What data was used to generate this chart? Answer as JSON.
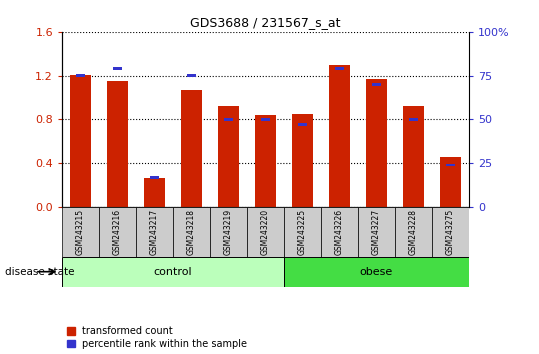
{
  "title": "GDS3688 / 231567_s_at",
  "samples": [
    "GSM243215",
    "GSM243216",
    "GSM243217",
    "GSM243218",
    "GSM243219",
    "GSM243220",
    "GSM243225",
    "GSM243226",
    "GSM243227",
    "GSM243228",
    "GSM243275"
  ],
  "red_values": [
    1.21,
    1.15,
    0.27,
    1.07,
    0.92,
    0.84,
    0.85,
    1.3,
    1.17,
    0.92,
    0.46
  ],
  "blue_values_pct": [
    75,
    79,
    17,
    75,
    50,
    50,
    47,
    79,
    70,
    50,
    24
  ],
  "red_ylim": [
    0,
    1.6
  ],
  "blue_ylim": [
    0,
    100
  ],
  "red_yticks": [
    0,
    0.4,
    0.8,
    1.2,
    1.6
  ],
  "blue_yticks": [
    0,
    25,
    50,
    75,
    100
  ],
  "blue_ytick_labels": [
    "0",
    "25",
    "50",
    "75",
    "100%"
  ],
  "control_count": 6,
  "obese_count": 5,
  "control_label": "control",
  "obese_label": "obese",
  "disease_label": "disease state",
  "legend_red": "transformed count",
  "legend_blue": "percentile rank within the sample",
  "bar_color_red": "#cc2200",
  "bar_color_blue": "#3333cc",
  "control_bg": "#bbffbb",
  "obese_bg": "#44dd44",
  "tick_bg": "#cccccc",
  "bar_width": 0.55
}
